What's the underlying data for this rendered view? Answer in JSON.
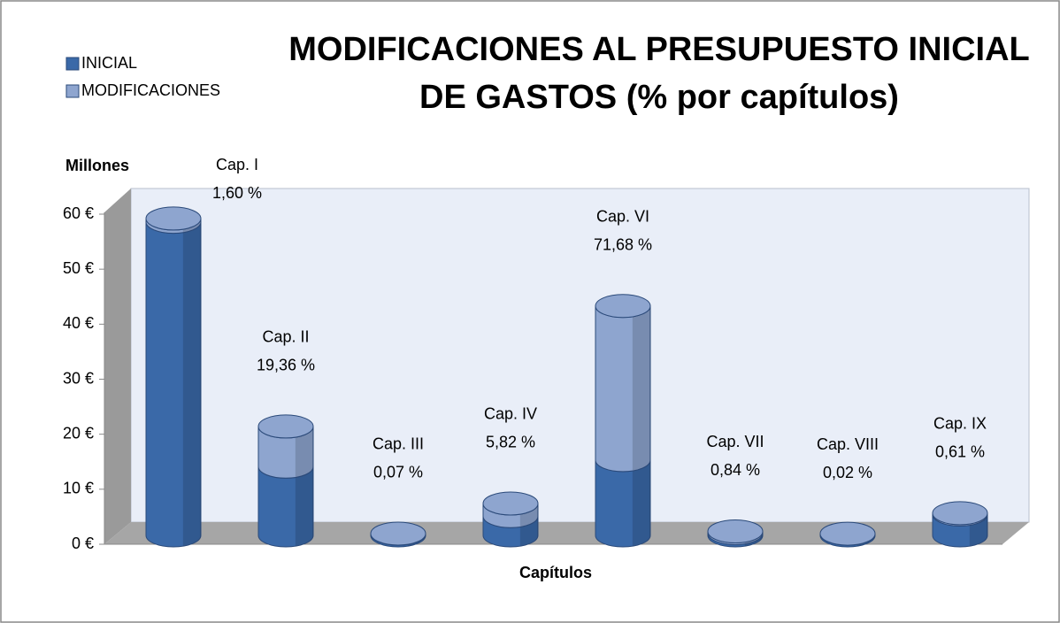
{
  "chart_data": {
    "type": "stacked_cylinder",
    "title": [
      "MODIFICACIONES AL PRESUPUESTO INICIAL",
      "DE GASTOS (% por capítulos)"
    ],
    "y_axis_label": "Millones",
    "x_axis_label": "Capítulos",
    "categories": [
      "Cap. I",
      "Cap. II",
      "Cap. III",
      "Cap. IV",
      "Cap. VI",
      "Cap. VII",
      "Cap. VIII",
      "Cap. IX"
    ],
    "shares": [
      "1,60 %",
      "19,36 %",
      "0,07 %",
      "5,82 %",
      "71,68 %",
      "0,84 %",
      "0,02 %",
      "0,61 %"
    ],
    "series": [
      {
        "name": "INICIAL",
        "color": "#3a69a8",
        "values": [
          57,
          12.5,
          0.3,
          3.5,
          13.7,
          0.4,
          0.3,
          3.8
        ]
      },
      {
        "name": "MODIFICACIONES",
        "color": "#8ea5cf",
        "values": [
          0.6,
          7.3,
          0.03,
          2.3,
          28,
          0.33,
          0.01,
          0.24
        ]
      }
    ],
    "ylim": [
      0,
      60
    ],
    "yticks": [
      {
        "value": 0,
        "label": "0 €"
      },
      {
        "value": 10,
        "label": "10 €"
      },
      {
        "value": 20,
        "label": "20 €"
      },
      {
        "value": 30,
        "label": "30 €"
      },
      {
        "value": 40,
        "label": "40 €"
      },
      {
        "value": 50,
        "label": "50 €"
      },
      {
        "value": 60,
        "label": "60 €"
      }
    ],
    "legend": "top-left"
  }
}
